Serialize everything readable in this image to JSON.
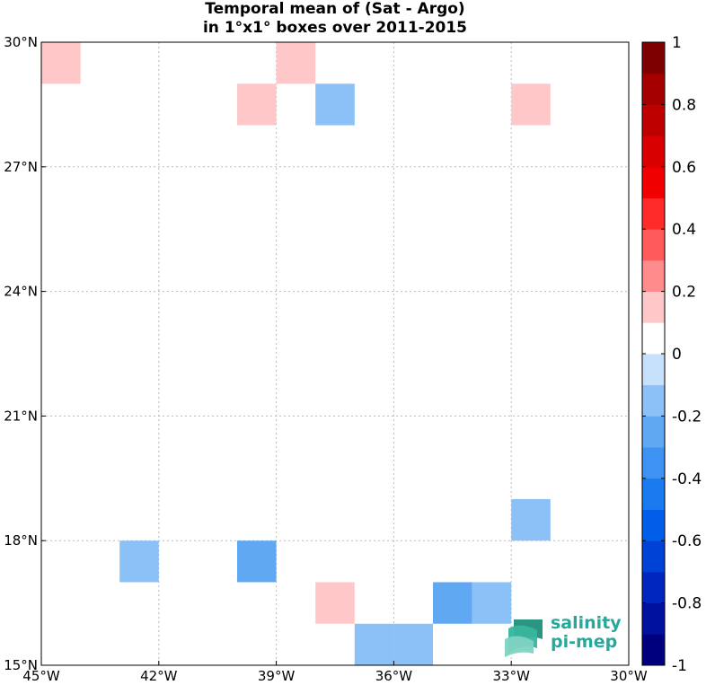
{
  "chart_data": {
    "type": "heatmap",
    "title": [
      "Temporal mean of (Sat - Argo)",
      "in 1°x1° boxes over 2011-2015"
    ],
    "xlim": [
      -45,
      -30
    ],
    "ylim": [
      15,
      30
    ],
    "x_ticks": [
      -45,
      -42,
      -39,
      -36,
      -33,
      -30
    ],
    "x_tick_labels": [
      "45°W",
      "42°W",
      "39°W",
      "36°W",
      "33°W",
      "30°W"
    ],
    "y_ticks": [
      15,
      18,
      21,
      24,
      27,
      30
    ],
    "y_tick_labels": [
      "15°N",
      "18°N",
      "21°N",
      "24°N",
      "27°N",
      "30°N"
    ],
    "grid": true,
    "cells": [
      {
        "lon": -45,
        "lat": 29,
        "value": 0.15
      },
      {
        "lon": -39,
        "lat": 29,
        "value": 0.15
      },
      {
        "lon": -40,
        "lat": 28,
        "value": 0.15
      },
      {
        "lon": -38,
        "lat": 28,
        "value": -0.15
      },
      {
        "lon": -33,
        "lat": 28,
        "value": 0.15
      },
      {
        "lon": -33,
        "lat": 18,
        "value": -0.15
      },
      {
        "lon": -43,
        "lat": 17,
        "value": -0.15
      },
      {
        "lon": -40,
        "lat": 17,
        "value": -0.25
      },
      {
        "lon": -38,
        "lat": 16,
        "value": 0.15
      },
      {
        "lon": -35,
        "lat": 16,
        "value": -0.25
      },
      {
        "lon": -34,
        "lat": 16,
        "value": -0.15
      },
      {
        "lon": -37,
        "lat": 15,
        "value": -0.15
      },
      {
        "lon": -36,
        "lat": 15,
        "value": -0.15
      }
    ],
    "colorbar": {
      "range": [
        -1,
        1
      ],
      "step": 0.1,
      "tick_labels": [
        "-1",
        "-0.8",
        "-0.6",
        "-0.4",
        "-0.2",
        "0",
        "0.2",
        "0.4",
        "0.6",
        "0.8",
        "1"
      ],
      "colors": [
        "#00007f",
        "#0011a0",
        "#0027bd",
        "#0041d6",
        "#005ee8",
        "#1a7af0",
        "#3d92f2",
        "#61a8f3",
        "#8cc1f7",
        "#c7e0fb",
        "#ffffff",
        "#ffc8c8",
        "#ff8c8c",
        "#ff5b5b",
        "#ff2a2a",
        "#f00000",
        "#d80000",
        "#bf0000",
        "#a50000",
        "#7f0000"
      ]
    }
  },
  "logo": {
    "line1": "salinity",
    "line2": "pi-mep"
  }
}
